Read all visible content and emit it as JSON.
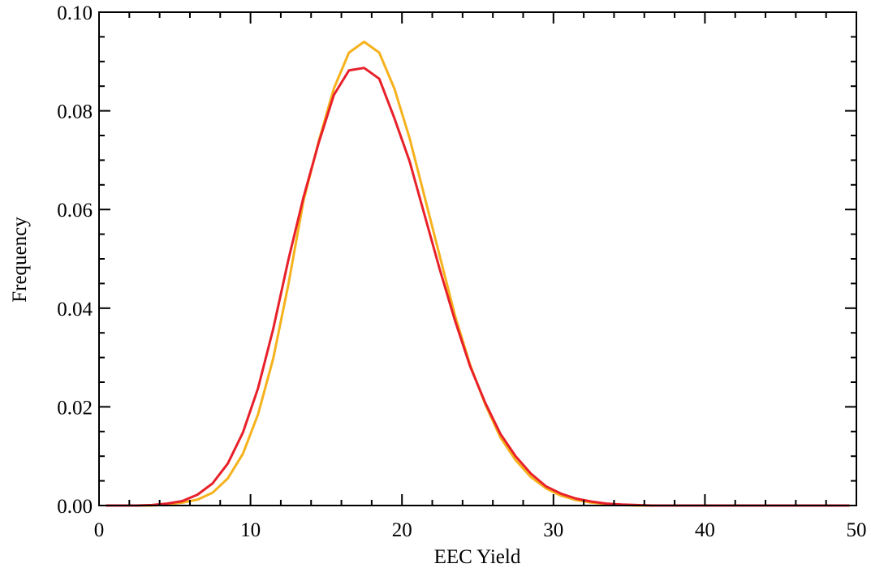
{
  "chart_data": {
    "type": "line",
    "title": "",
    "xlabel": "EEC Yield",
    "ylabel": "Frequency",
    "xlim": [
      0,
      50
    ],
    "ylim": [
      0,
      0.1
    ],
    "xticks": [
      0,
      10,
      20,
      30,
      40,
      50
    ],
    "xtick_labels": [
      "0",
      "10",
      "20",
      "30",
      "40",
      "50"
    ],
    "yticks": [
      0,
      0.02,
      0.04,
      0.06,
      0.08,
      0.1
    ],
    "ytick_labels": [
      "0.00",
      "0.02",
      "0.04",
      "0.06",
      "0.08",
      "0.10"
    ],
    "grid": false,
    "legend": "none",
    "x": [
      0.5,
      1.5,
      2.5,
      3.5,
      4.5,
      5.5,
      6.5,
      7.5,
      8.5,
      9.5,
      10.5,
      11.5,
      12.5,
      13.5,
      14.5,
      15.5,
      16.5,
      17.5,
      18.5,
      19.5,
      20.5,
      21.5,
      22.5,
      23.5,
      24.5,
      25.5,
      26.5,
      27.5,
      28.5,
      29.5,
      30.5,
      31.5,
      32.5,
      33.5,
      34.5,
      35.5,
      36.5,
      37.5,
      38.5,
      39.5,
      40.5,
      41.5,
      42.5,
      43.5,
      44.5,
      45.5,
      46.5,
      47.5,
      48.5,
      49.5
    ],
    "series": [
      {
        "color": "#f5b21c",
        "values": [
          0,
          0,
          0,
          0,
          0.0002,
          0.0006,
          0.0012,
          0.0026,
          0.0055,
          0.0105,
          0.0185,
          0.0298,
          0.0448,
          0.0618,
          0.0738,
          0.0845,
          0.0918,
          0.094,
          0.0918,
          0.0845,
          0.0745,
          0.0625,
          0.0505,
          0.0385,
          0.0285,
          0.0205,
          0.0138,
          0.0092,
          0.0058,
          0.0035,
          0.002,
          0.0011,
          0.0006,
          0.0003,
          0.0001,
          0,
          0,
          0,
          0,
          0,
          0,
          0,
          0,
          0,
          0,
          0,
          0,
          0,
          0,
          0
        ]
      },
      {
        "color": "#e8202a",
        "values": [
          0,
          0,
          0,
          0.0001,
          0.0004,
          0.0009,
          0.0022,
          0.0045,
          0.0085,
          0.0148,
          0.0238,
          0.0358,
          0.0498,
          0.0625,
          0.0735,
          0.0832,
          0.0882,
          0.0887,
          0.0865,
          0.0785,
          0.0698,
          0.0588,
          0.0478,
          0.0375,
          0.0282,
          0.0208,
          0.0145,
          0.01,
          0.0065,
          0.0039,
          0.0024,
          0.0014,
          0.0008,
          0.0004,
          0.0002,
          0.0001,
          0,
          0,
          0,
          0,
          0,
          0,
          0,
          0,
          0,
          0,
          0,
          0,
          0,
          0
        ]
      }
    ]
  }
}
